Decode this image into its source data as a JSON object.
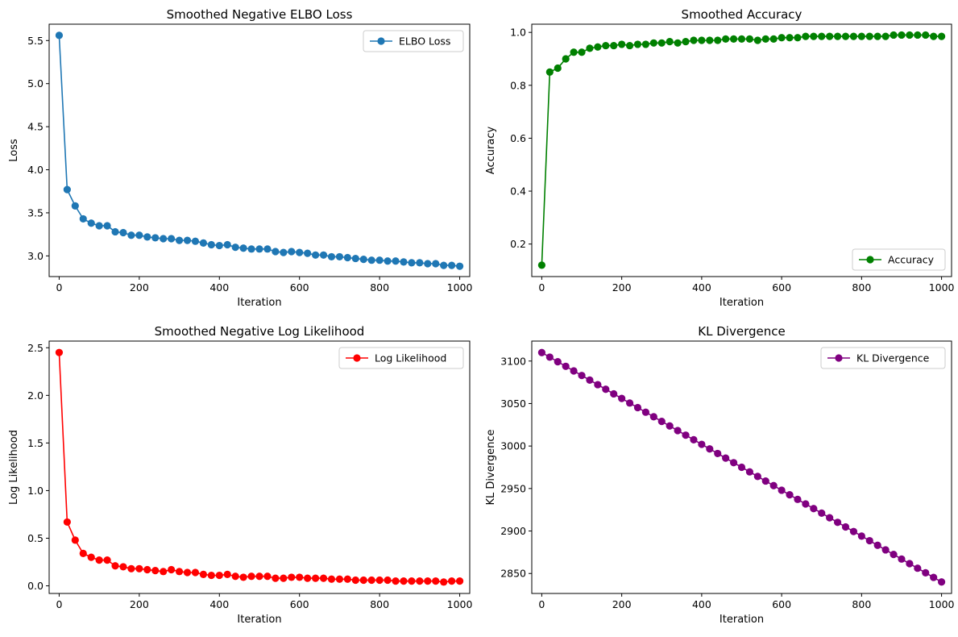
{
  "chart_data": [
    {
      "type": "line",
      "title": "Smoothed Negative ELBO Loss",
      "xlabel": "Iteration",
      "ylabel": "Loss",
      "xlim": [
        -25,
        1025
      ],
      "ylim": [
        2.76,
        5.69
      ],
      "xticks": [
        0,
        200,
        400,
        600,
        800,
        1000
      ],
      "yticks": [
        3.0,
        3.5,
        4.0,
        4.5,
        5.0,
        5.5
      ],
      "ytick_labels": [
        "3.0",
        "3.5",
        "4.0",
        "4.5",
        "5.0",
        "5.5"
      ],
      "legend_position": "top-right",
      "grid": false,
      "series": [
        {
          "name": "ELBO Loss",
          "color": "#1f77b4",
          "x": [
            0,
            20,
            40,
            60,
            80,
            100,
            120,
            140,
            160,
            180,
            200,
            220,
            240,
            260,
            280,
            300,
            320,
            340,
            360,
            380,
            400,
            420,
            440,
            460,
            480,
            500,
            520,
            540,
            560,
            580,
            600,
            620,
            640,
            660,
            680,
            700,
            720,
            740,
            760,
            780,
            800,
            820,
            840,
            860,
            880,
            900,
            920,
            940,
            960,
            980,
            1000
          ],
          "values": [
            5.56,
            3.77,
            3.58,
            3.43,
            3.38,
            3.35,
            3.35,
            3.28,
            3.27,
            3.24,
            3.24,
            3.22,
            3.21,
            3.2,
            3.2,
            3.18,
            3.18,
            3.17,
            3.15,
            3.13,
            3.12,
            3.13,
            3.1,
            3.09,
            3.08,
            3.08,
            3.08,
            3.05,
            3.04,
            3.05,
            3.04,
            3.03,
            3.01,
            3.01,
            2.99,
            2.99,
            2.98,
            2.97,
            2.96,
            2.95,
            2.95,
            2.94,
            2.94,
            2.93,
            2.92,
            2.92,
            2.91,
            2.91,
            2.89,
            2.89,
            2.88
          ]
        }
      ]
    },
    {
      "type": "line",
      "title": "Smoothed Accuracy",
      "xlabel": "Iteration",
      "ylabel": "Accuracy",
      "xlim": [
        -25,
        1025
      ],
      "ylim": [
        0.077,
        1.031
      ],
      "xticks": [
        0,
        200,
        400,
        600,
        800,
        1000
      ],
      "yticks": [
        0.2,
        0.4,
        0.6,
        0.8,
        1.0
      ],
      "ytick_labels": [
        "0.2",
        "0.4",
        "0.6",
        "0.8",
        "1.0"
      ],
      "legend_position": "bottom-right",
      "grid": false,
      "series": [
        {
          "name": "Accuracy",
          "color": "#008000",
          "x": [
            0,
            20,
            40,
            60,
            80,
            100,
            120,
            140,
            160,
            180,
            200,
            220,
            240,
            260,
            280,
            300,
            320,
            340,
            360,
            380,
            400,
            420,
            440,
            460,
            480,
            500,
            520,
            540,
            560,
            580,
            600,
            620,
            640,
            660,
            680,
            700,
            720,
            740,
            760,
            780,
            800,
            820,
            840,
            860,
            880,
            900,
            920,
            940,
            960,
            980,
            1000
          ],
          "values": [
            0.12,
            0.85,
            0.865,
            0.9,
            0.925,
            0.925,
            0.94,
            0.945,
            0.95,
            0.95,
            0.955,
            0.95,
            0.955,
            0.955,
            0.96,
            0.96,
            0.965,
            0.96,
            0.965,
            0.97,
            0.97,
            0.97,
            0.97,
            0.975,
            0.975,
            0.975,
            0.975,
            0.97,
            0.975,
            0.975,
            0.98,
            0.98,
            0.98,
            0.985,
            0.985,
            0.985,
            0.985,
            0.985,
            0.985,
            0.985,
            0.985,
            0.985,
            0.985,
            0.985,
            0.99,
            0.99,
            0.99,
            0.99,
            0.99,
            0.985,
            0.985
          ]
        }
      ]
    },
    {
      "type": "line",
      "title": "Smoothed Negative Log Likelihood",
      "xlabel": "Iteration",
      "ylabel": "Log Likelihood",
      "xlim": [
        -25,
        1025
      ],
      "ylim": [
        -0.08,
        2.57
      ],
      "xticks": [
        0,
        200,
        400,
        600,
        800,
        1000
      ],
      "yticks": [
        0.0,
        0.5,
        1.0,
        1.5,
        2.0,
        2.5
      ],
      "ytick_labels": [
        "0.0",
        "0.5",
        "1.0",
        "1.5",
        "2.0",
        "2.5"
      ],
      "legend_position": "top-right",
      "grid": false,
      "series": [
        {
          "name": "Log Likelihood",
          "color": "#ff0000",
          "x": [
            0,
            20,
            40,
            60,
            80,
            100,
            120,
            140,
            160,
            180,
            200,
            220,
            240,
            260,
            280,
            300,
            320,
            340,
            360,
            380,
            400,
            420,
            440,
            460,
            480,
            500,
            520,
            540,
            560,
            580,
            600,
            620,
            640,
            660,
            680,
            700,
            720,
            740,
            760,
            780,
            800,
            820,
            840,
            860,
            880,
            900,
            920,
            940,
            960,
            980,
            1000
          ],
          "values": [
            2.45,
            0.67,
            0.48,
            0.34,
            0.3,
            0.27,
            0.27,
            0.21,
            0.2,
            0.18,
            0.18,
            0.17,
            0.16,
            0.15,
            0.17,
            0.15,
            0.14,
            0.14,
            0.12,
            0.11,
            0.11,
            0.12,
            0.1,
            0.09,
            0.1,
            0.1,
            0.1,
            0.08,
            0.08,
            0.09,
            0.09,
            0.08,
            0.08,
            0.08,
            0.07,
            0.07,
            0.07,
            0.06,
            0.06,
            0.06,
            0.06,
            0.06,
            0.05,
            0.05,
            0.05,
            0.05,
            0.05,
            0.05,
            0.04,
            0.05,
            0.05
          ]
        }
      ]
    },
    {
      "type": "line",
      "title": "KL Divergence",
      "xlabel": "Iteration",
      "ylabel": "KL Divergence",
      "xlim": [
        -25,
        1025
      ],
      "ylim": [
        2826.5,
        3123.5
      ],
      "xticks": [
        0,
        200,
        400,
        600,
        800,
        1000
      ],
      "yticks": [
        2850,
        2900,
        2950,
        3000,
        3050,
        3100
      ],
      "ytick_labels": [
        "2850",
        "2900",
        "2950",
        "3000",
        "3050",
        "3100"
      ],
      "legend_position": "top-right",
      "grid": false,
      "series": [
        {
          "name": "KL Divergence",
          "color": "#800080",
          "x": [
            0,
            20,
            40,
            60,
            80,
            100,
            120,
            140,
            160,
            180,
            200,
            220,
            240,
            260,
            280,
            300,
            320,
            340,
            360,
            380,
            400,
            420,
            440,
            460,
            480,
            500,
            520,
            540,
            560,
            580,
            600,
            620,
            640,
            660,
            680,
            700,
            720,
            740,
            760,
            780,
            800,
            820,
            840,
            860,
            880,
            900,
            920,
            940,
            960,
            980,
            1000
          ],
          "values": [
            3110,
            3104.6,
            3099.2,
            3093.8,
            3088.4,
            3083,
            3077.6,
            3072.2,
            3066.8,
            3061.4,
            3056,
            3050.6,
            3045.2,
            3039.8,
            3034.4,
            3029,
            3023.6,
            3018.2,
            3012.8,
            3007.4,
            3002,
            2996.6,
            2991.2,
            2985.8,
            2980.4,
            2975,
            2969.6,
            2964.2,
            2958.8,
            2953.4,
            2948,
            2942.6,
            2937.2,
            2931.8,
            2926.4,
            2921,
            2915.6,
            2910.2,
            2904.8,
            2899.4,
            2894,
            2888.6,
            2883.2,
            2877.8,
            2872.4,
            2867,
            2861.6,
            2856.2,
            2850.8,
            2845.4,
            2840
          ]
        }
      ]
    }
  ]
}
